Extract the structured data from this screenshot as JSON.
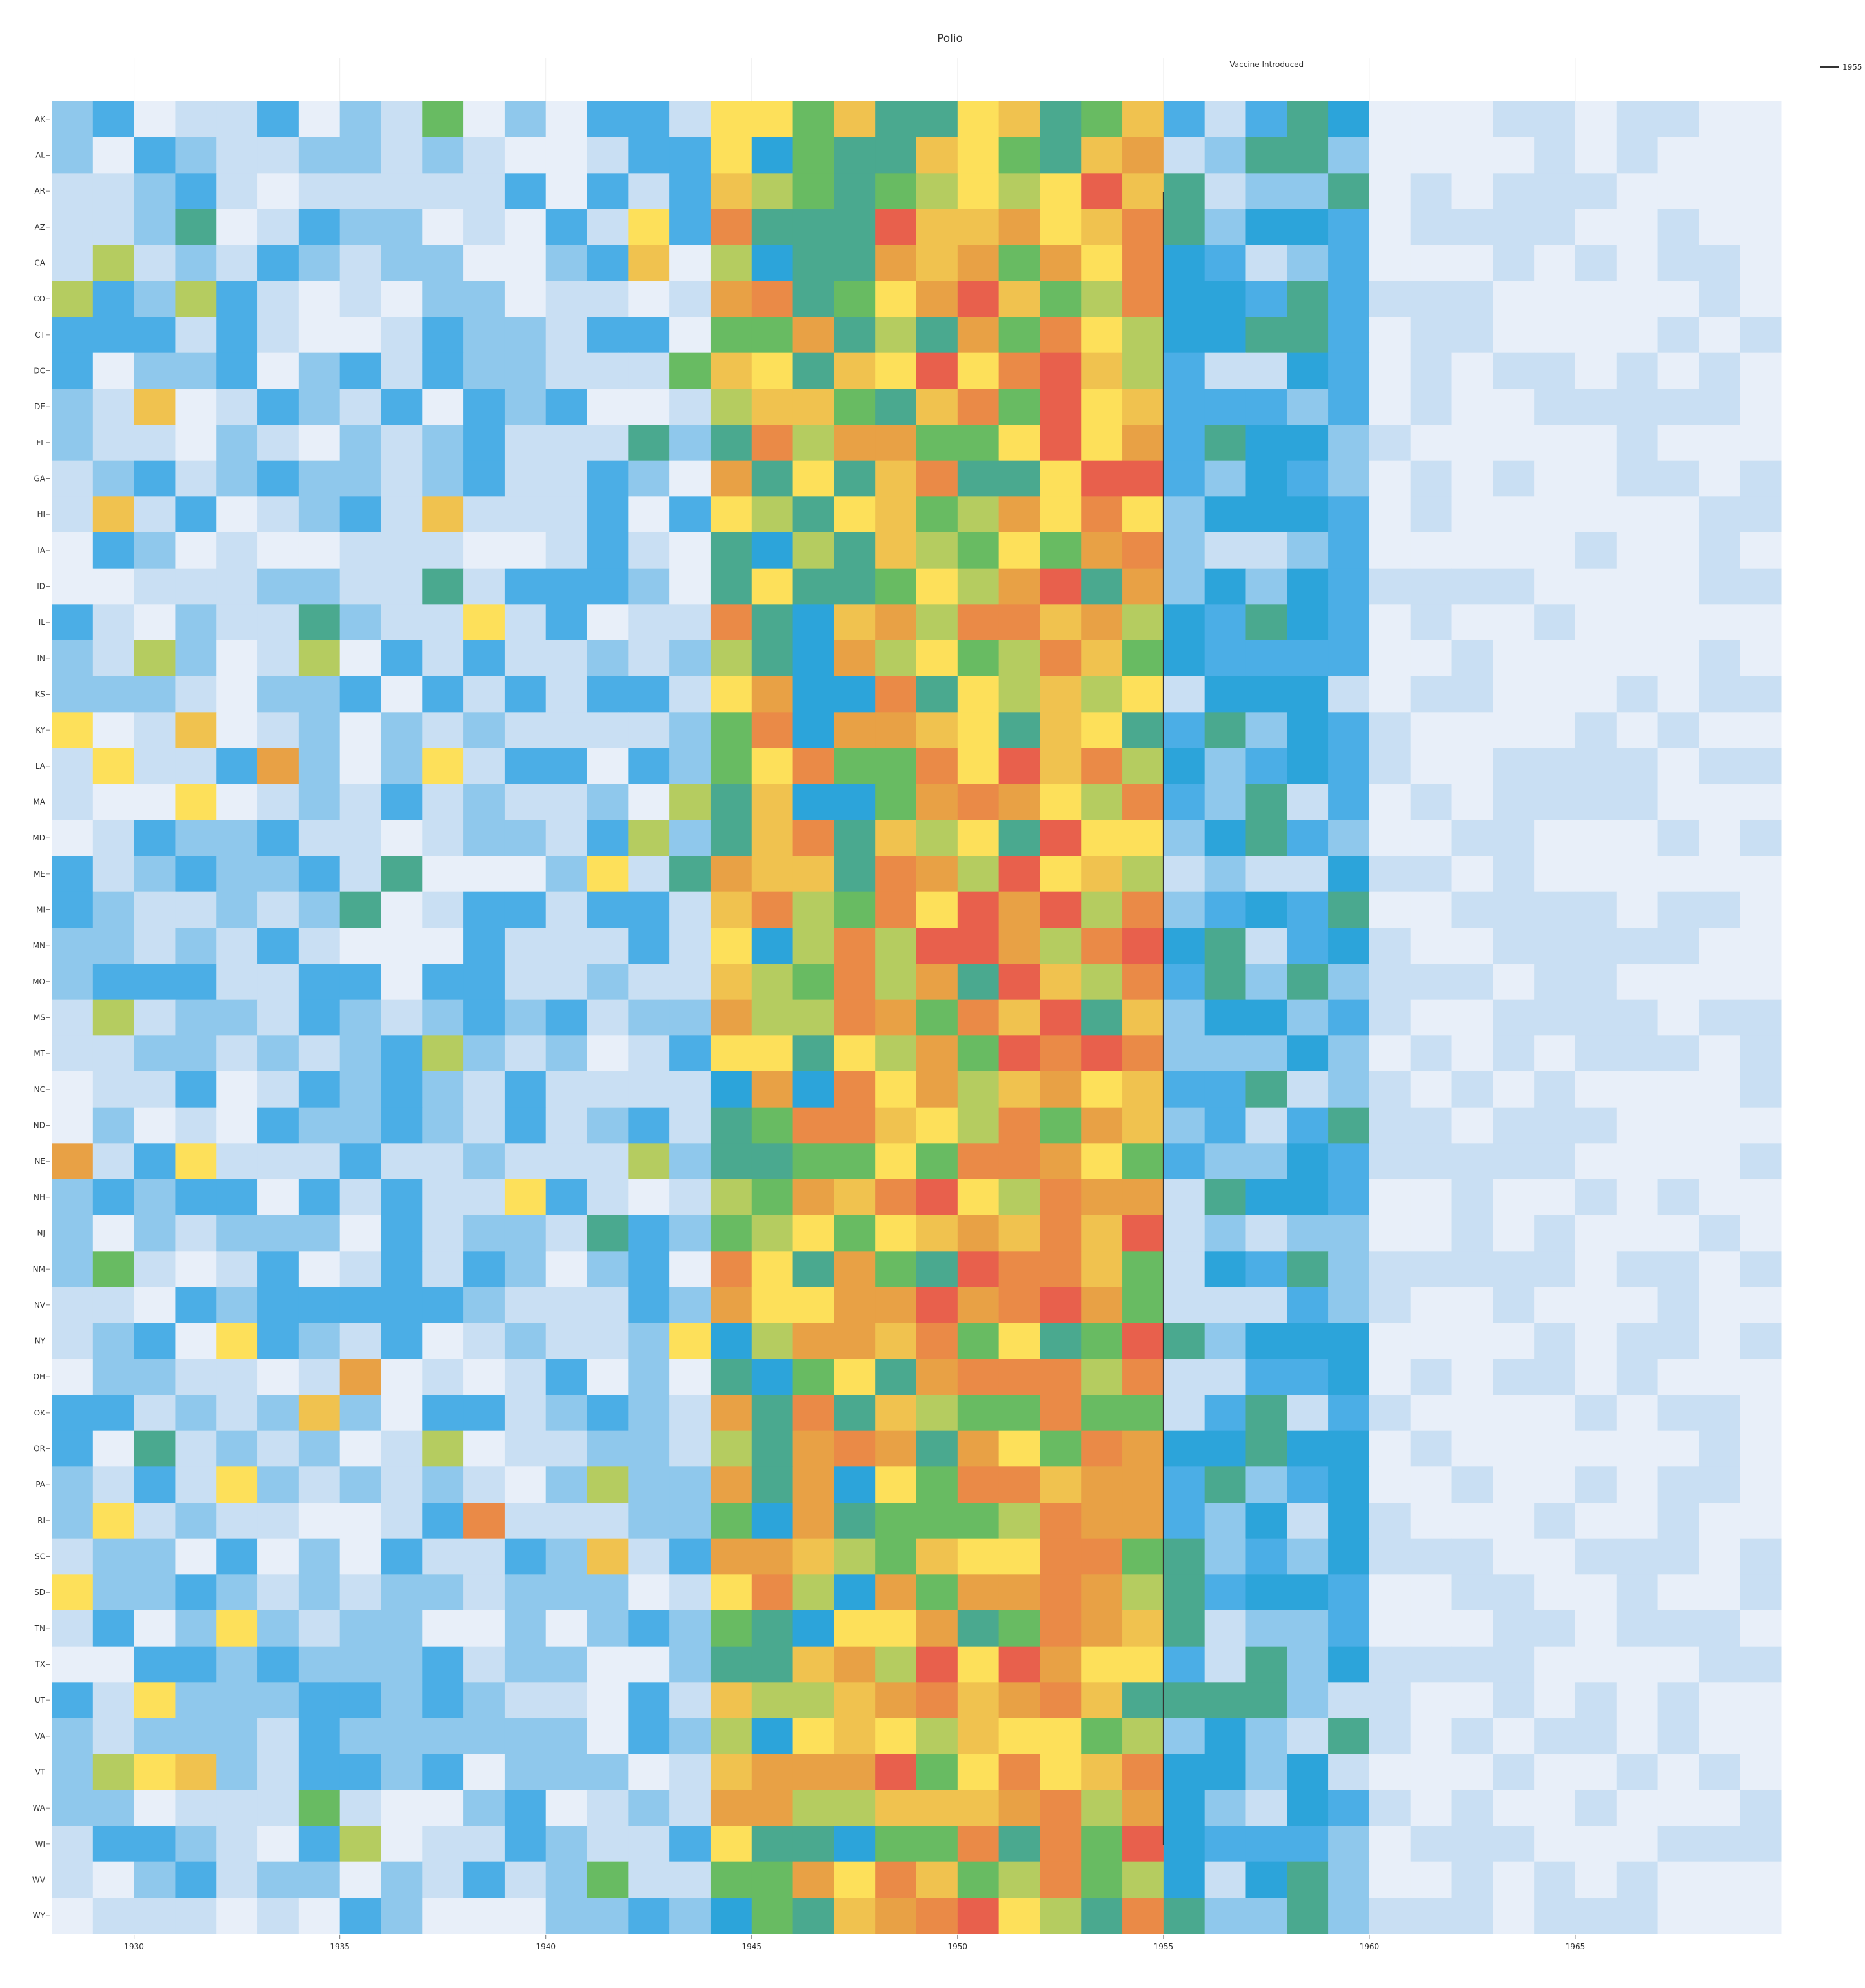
{
  "chart_data": {
    "type": "heatmap",
    "title": "Polio",
    "xlabel": "",
    "ylabel": "",
    "x_range": [
      1928,
      1970
    ],
    "x_ticks": [
      1930,
      1935,
      1940,
      1945,
      1950,
      1955,
      1960,
      1965
    ],
    "grid": "vertical",
    "colorscale": [
      "#e8eff9",
      "#c9dff3",
      "#8fc8ec",
      "#4baee6",
      "#2ca4da",
      "#4aa98f",
      "#68bb62",
      "#b5cc60",
      "#fde05a",
      "#f0c24f",
      "#e8a145",
      "#ea8a47",
      "#e8604c"
    ],
    "intensity_scale": "0-12 (color index)",
    "states": [
      "AK",
      "AL",
      "AR",
      "AZ",
      "CA",
      "CO",
      "CT",
      "DC",
      "DE",
      "FL",
      "GA",
      "HI",
      "IA",
      "ID",
      "IL",
      "IN",
      "KS",
      "KY",
      "LA",
      "MA",
      "MD",
      "ME",
      "MI",
      "MN",
      "MO",
      "MS",
      "MT",
      "NC",
      "ND",
      "NE",
      "NH",
      "NJ",
      "NM",
      "NV",
      "NY",
      "OH",
      "OK",
      "OR",
      "PA",
      "RI",
      "SC",
      "SD",
      "TN",
      "TX",
      "UT",
      "VA",
      "VT",
      "WA",
      "WI",
      "WV",
      "WY"
    ],
    "annotation": {
      "text": "Vaccine Introduced",
      "x": 1955
    },
    "legend": {
      "label": "1955",
      "placement": "top-right"
    }
  }
}
